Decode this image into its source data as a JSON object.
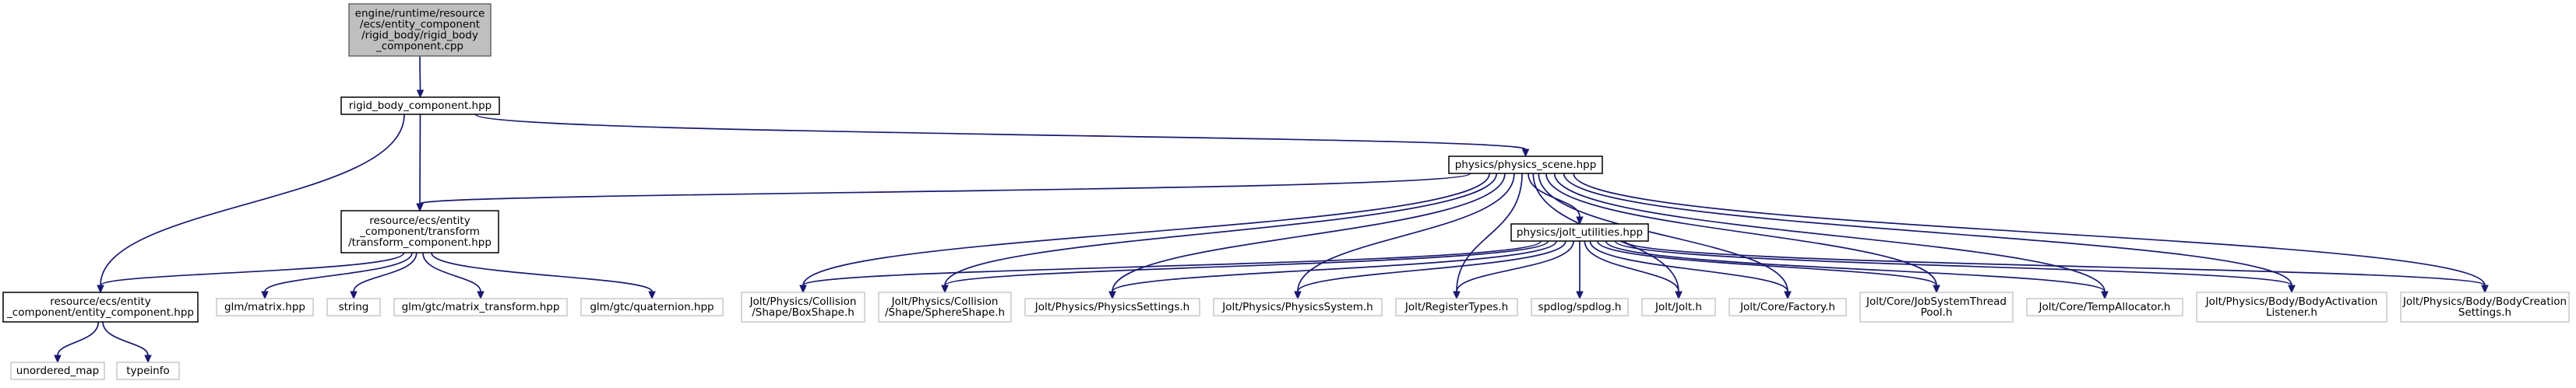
{
  "graph_title": "",
  "colors": {
    "edge": "#191970",
    "root_fill": "#bfbfbf",
    "root_stroke": "#666666",
    "node_stroke": "#000000",
    "external_stroke": "#bfbfbf",
    "text": "#000000"
  },
  "nodes": [
    {
      "id": "root",
      "kind": "root",
      "lines": [
        "engine/runtime/resource",
        "/ecs/entity_component",
        "/rigid_body/rigid_body",
        "_component.cpp"
      ]
    },
    {
      "id": "rbc",
      "kind": "local",
      "lines": [
        "rigid_body_component.hpp"
      ]
    },
    {
      "id": "ecs",
      "kind": "local",
      "lines": [
        "resource/ecs/entity",
        "_component/entity_component.hpp"
      ]
    },
    {
      "id": "tc",
      "kind": "local",
      "lines": [
        "resource/ecs/entity",
        "_component/transform",
        "/transform_component.hpp"
      ]
    },
    {
      "id": "ps",
      "kind": "local",
      "lines": [
        "physics/physics_scene.hpp"
      ]
    },
    {
      "id": "ju",
      "kind": "local",
      "lines": [
        "physics/jolt_utilities.hpp"
      ]
    },
    {
      "id": "umap",
      "kind": "external",
      "lines": [
        "unordered_map"
      ]
    },
    {
      "id": "typeinfo",
      "kind": "external",
      "lines": [
        "typeinfo"
      ]
    },
    {
      "id": "glmmatrix",
      "kind": "external",
      "lines": [
        "glm/matrix.hpp"
      ]
    },
    {
      "id": "string",
      "kind": "external",
      "lines": [
        "string"
      ]
    },
    {
      "id": "glmmt",
      "kind": "external",
      "lines": [
        "glm/gtc/matrix_transform.hpp"
      ]
    },
    {
      "id": "glmq",
      "kind": "external",
      "lines": [
        "glm/gtc/quaternion.hpp"
      ]
    },
    {
      "id": "boxshape",
      "kind": "external",
      "lines": [
        "Jolt/Physics/Collision",
        "/Shape/BoxShape.h"
      ]
    },
    {
      "id": "sphereshape",
      "kind": "external",
      "lines": [
        "Jolt/Physics/Collision",
        "/Shape/SphereShape.h"
      ]
    },
    {
      "id": "physsettings",
      "kind": "external",
      "lines": [
        "Jolt/Physics/PhysicsSettings.h"
      ]
    },
    {
      "id": "physsystem",
      "kind": "external",
      "lines": [
        "Jolt/Physics/PhysicsSystem.h"
      ]
    },
    {
      "id": "regtypes",
      "kind": "external",
      "lines": [
        "Jolt/RegisterTypes.h"
      ]
    },
    {
      "id": "spdlog",
      "kind": "external",
      "lines": [
        "spdlog/spdlog.h"
      ]
    },
    {
      "id": "jolt",
      "kind": "external",
      "lines": [
        "Jolt/Jolt.h"
      ]
    },
    {
      "id": "factory",
      "kind": "external",
      "lines": [
        "Jolt/Core/Factory.h"
      ]
    },
    {
      "id": "jobsys",
      "kind": "external",
      "lines": [
        "Jolt/Core/JobSystemThread",
        "Pool.h"
      ]
    },
    {
      "id": "tempalloc",
      "kind": "external",
      "lines": [
        "Jolt/Core/TempAllocator.h"
      ]
    },
    {
      "id": "bodyact",
      "kind": "external",
      "lines": [
        "Jolt/Physics/Body/BodyActivation",
        "Listener.h"
      ]
    },
    {
      "id": "bodycreate",
      "kind": "external",
      "lines": [
        "Jolt/Physics/Body/BodyCreation",
        "Settings.h"
      ]
    }
  ],
  "edges": [
    [
      "root",
      "rbc"
    ],
    [
      "rbc",
      "ecs"
    ],
    [
      "rbc",
      "tc"
    ],
    [
      "rbc",
      "ps"
    ],
    [
      "ecs",
      "umap"
    ],
    [
      "ecs",
      "typeinfo"
    ],
    [
      "tc",
      "ecs"
    ],
    [
      "tc",
      "glmmatrix"
    ],
    [
      "tc",
      "string"
    ],
    [
      "tc",
      "glmmt"
    ],
    [
      "tc",
      "glmq"
    ],
    [
      "ps",
      "tc"
    ],
    [
      "ps",
      "ju"
    ],
    [
      "ps",
      "boxshape"
    ],
    [
      "ps",
      "sphereshape"
    ],
    [
      "ps",
      "physsettings"
    ],
    [
      "ps",
      "physsystem"
    ],
    [
      "ps",
      "regtypes"
    ],
    [
      "ps",
      "jolt"
    ],
    [
      "ps",
      "factory"
    ],
    [
      "ps",
      "jobsys"
    ],
    [
      "ps",
      "tempalloc"
    ],
    [
      "ps",
      "bodyact"
    ],
    [
      "ps",
      "bodycreate"
    ],
    [
      "ju",
      "boxshape"
    ],
    [
      "ju",
      "sphereshape"
    ],
    [
      "ju",
      "physsettings"
    ],
    [
      "ju",
      "physsystem"
    ],
    [
      "ju",
      "regtypes"
    ],
    [
      "ju",
      "spdlog"
    ],
    [
      "ju",
      "jolt"
    ],
    [
      "ju",
      "factory"
    ],
    [
      "ju",
      "jobsys"
    ],
    [
      "ju",
      "tempalloc"
    ],
    [
      "ju",
      "bodyact"
    ],
    [
      "ju",
      "bodycreate"
    ]
  ]
}
